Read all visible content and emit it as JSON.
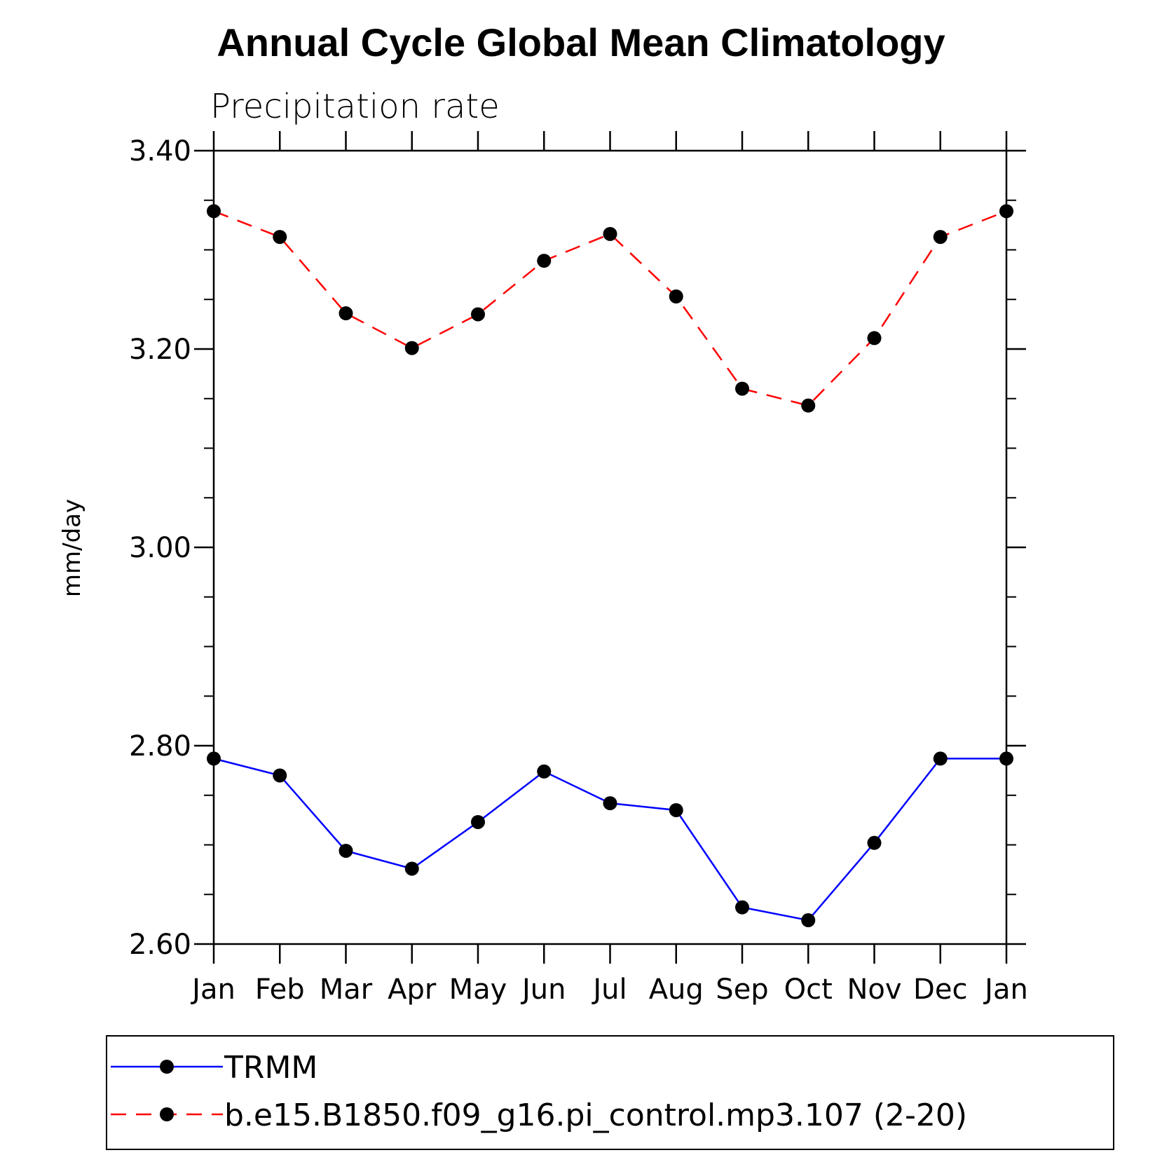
{
  "chart_data": {
    "type": "line",
    "title": "Annual Cycle Global Mean Climatology",
    "subtitle": "Precipitation rate",
    "xlabel": "",
    "ylabel": "mm/day",
    "categories": [
      "Jan",
      "Feb",
      "Mar",
      "Apr",
      "May",
      "Jun",
      "Jul",
      "Aug",
      "Sep",
      "Oct",
      "Nov",
      "Dec",
      "Jan"
    ],
    "ylim": [
      2.6,
      3.4
    ],
    "yticks": [
      "2.60",
      "2.80",
      "3.00",
      "3.20",
      "3.40"
    ],
    "grid": false,
    "legend_position": "bottom",
    "series": [
      {
        "name": "TRMM",
        "color": "#0000ff",
        "dash": "solid",
        "values": [
          2.787,
          2.77,
          2.694,
          2.676,
          2.723,
          2.774,
          2.742,
          2.735,
          2.637,
          2.624,
          2.702,
          2.787,
          2.787
        ]
      },
      {
        "name": "b.e15.B1850.f09_g16.pi_control.mp3.107 (2-20)",
        "color": "#ff0000",
        "dash": "dashed",
        "values": [
          3.339,
          3.313,
          3.236,
          3.201,
          3.235,
          3.289,
          3.316,
          3.253,
          3.16,
          3.143,
          3.211,
          3.313,
          3.339
        ]
      }
    ]
  }
}
